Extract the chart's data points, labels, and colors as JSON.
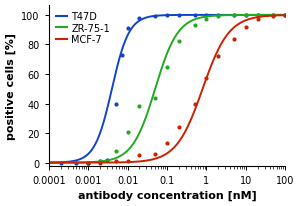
{
  "title": "",
  "xlabel": "antibody concentration [nM]",
  "ylabel": "positive cells [%]",
  "xlim": [
    0.0001,
    100
  ],
  "ylim": [
    -2,
    107
  ],
  "series": [
    {
      "label": "T47D",
      "color": "#1144cc",
      "ec50": 0.004,
      "hill": 2.0,
      "bottom": 0,
      "top": 100,
      "data_x": [
        0.0002,
        0.0005,
        0.001,
        0.002,
        0.003,
        0.005,
        0.007,
        0.01,
        0.02,
        0.05,
        0.1,
        0.2,
        0.5,
        1,
        2,
        5,
        10,
        20,
        50,
        100
      ],
      "data_y": [
        0,
        0,
        0,
        1,
        2,
        40,
        73,
        91,
        98,
        99,
        100,
        100,
        100,
        100,
        100,
        100,
        100,
        100,
        100,
        100
      ]
    },
    {
      "label": "ZR-75-1",
      "color": "#22aa22",
      "ec50": 0.05,
      "hill": 1.5,
      "bottom": 0,
      "top": 100,
      "data_x": [
        0.001,
        0.002,
        0.005,
        0.01,
        0.02,
        0.05,
        0.1,
        0.2,
        0.5,
        1,
        2,
        5,
        10,
        20,
        50,
        100
      ],
      "data_y": [
        0,
        1,
        8,
        21,
        38,
        44,
        65,
        82,
        93,
        97,
        99,
        100,
        100,
        100,
        100,
        100
      ]
    },
    {
      "label": "MCF-7",
      "color": "#cc2200",
      "ec50": 0.8,
      "hill": 1.3,
      "bottom": 0,
      "top": 100,
      "data_x": [
        0.001,
        0.002,
        0.005,
        0.01,
        0.02,
        0.05,
        0.1,
        0.2,
        0.5,
        1,
        2,
        5,
        10,
        20,
        50,
        100
      ],
      "data_y": [
        0,
        0,
        1,
        1,
        5,
        6,
        13,
        24,
        40,
        57,
        72,
        84,
        92,
        97,
        99,
        100
      ]
    }
  ],
  "legend_loc": "upper left",
  "tick_fontsize": 7,
  "label_fontsize": 8
}
